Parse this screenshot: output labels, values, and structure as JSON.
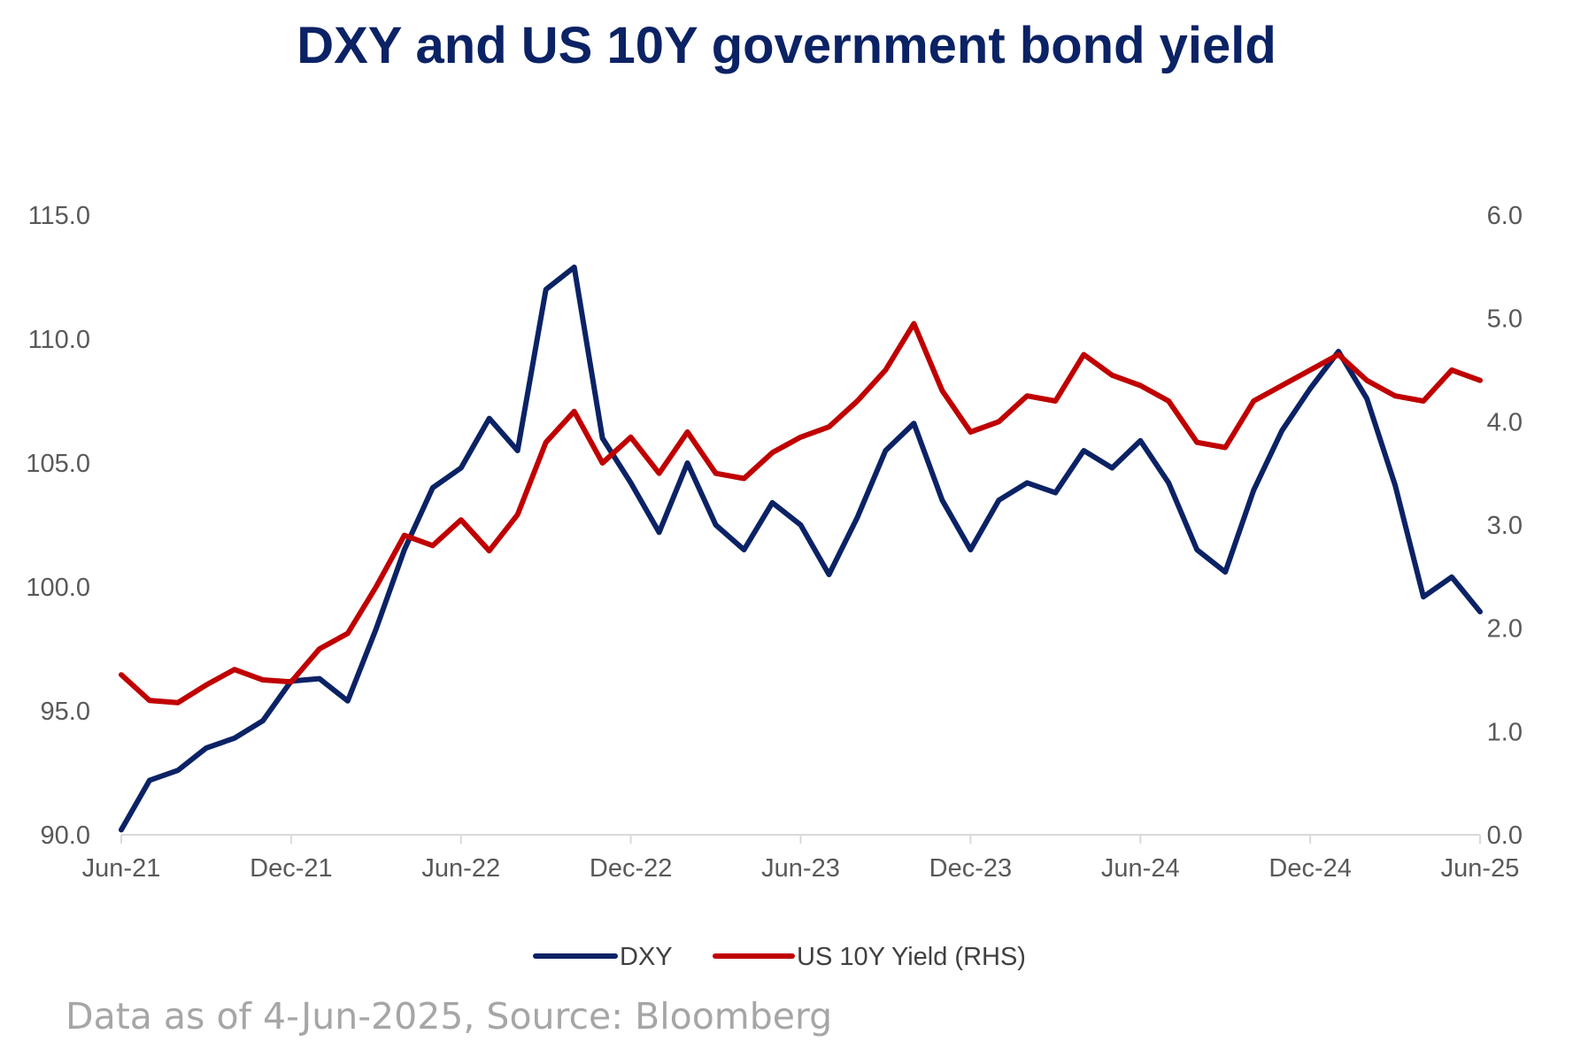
{
  "chart_data": {
    "type": "line",
    "title": "DXY and US 10Y government bond yield",
    "x_tick_labels": [
      "Jun-21",
      "Dec-21",
      "Jun-22",
      "Dec-22",
      "Jun-23",
      "Dec-23",
      "Jun-24",
      "Dec-24",
      "Jun-25"
    ],
    "x_range": [
      "2021-06",
      "2025-06"
    ],
    "y_left": {
      "range": [
        90,
        115
      ],
      "ticks": [
        "90.0",
        "95.0",
        "100.0",
        "105.0",
        "110.0",
        "115.0"
      ]
    },
    "y_right": {
      "range": [
        0,
        6
      ],
      "ticks": [
        "0.0",
        "1.0",
        "2.0",
        "3.0",
        "4.0",
        "5.0",
        "6.0"
      ]
    },
    "grid": false,
    "legend_position": "bottom",
    "series": [
      {
        "name": "DXY",
        "axis": "left",
        "color": "#0b2265",
        "x": [
          "2021-06",
          "2021-07",
          "2021-08",
          "2021-09",
          "2021-10",
          "2021-11",
          "2021-12",
          "2022-01",
          "2022-02",
          "2022-03",
          "2022-04",
          "2022-05",
          "2022-06",
          "2022-07",
          "2022-08",
          "2022-09",
          "2022-10",
          "2022-11",
          "2022-12",
          "2023-01",
          "2023-02",
          "2023-03",
          "2023-04",
          "2023-05",
          "2023-06",
          "2023-07",
          "2023-08",
          "2023-09",
          "2023-10",
          "2023-11",
          "2023-12",
          "2024-01",
          "2024-02",
          "2024-03",
          "2024-04",
          "2024-05",
          "2024-06",
          "2024-07",
          "2024-08",
          "2024-09",
          "2024-10",
          "2024-11",
          "2024-12",
          "2025-01",
          "2025-02",
          "2025-03",
          "2025-04",
          "2025-05",
          "2025-06"
        ],
        "values": [
          90.2,
          92.2,
          92.6,
          93.5,
          93.9,
          94.6,
          96.2,
          96.3,
          95.4,
          98.3,
          101.5,
          104.0,
          104.8,
          106.8,
          105.5,
          112.0,
          112.9,
          106.0,
          104.2,
          102.2,
          105.0,
          102.5,
          101.5,
          103.4,
          102.5,
          100.5,
          102.8,
          105.5,
          106.6,
          103.5,
          101.5,
          103.5,
          104.2,
          103.8,
          105.5,
          104.8,
          105.9,
          104.2,
          101.5,
          100.6,
          103.9,
          106.3,
          108.0,
          109.5,
          107.6,
          104.1,
          99.6,
          100.4,
          99.0
        ]
      },
      {
        "name": "US 10Y Yield (RHS)",
        "axis": "right",
        "color": "#c00000",
        "x": [
          "2021-06",
          "2021-07",
          "2021-08",
          "2021-09",
          "2021-10",
          "2021-11",
          "2021-12",
          "2022-01",
          "2022-02",
          "2022-03",
          "2022-04",
          "2022-05",
          "2022-06",
          "2022-07",
          "2022-08",
          "2022-09",
          "2022-10",
          "2022-11",
          "2022-12",
          "2023-01",
          "2023-02",
          "2023-03",
          "2023-04",
          "2023-05",
          "2023-06",
          "2023-07",
          "2023-08",
          "2023-09",
          "2023-10",
          "2023-11",
          "2023-12",
          "2024-01",
          "2024-02",
          "2024-03",
          "2024-04",
          "2024-05",
          "2024-06",
          "2024-07",
          "2024-08",
          "2024-09",
          "2024-10",
          "2024-11",
          "2024-12",
          "2025-01",
          "2025-02",
          "2025-03",
          "2025-04",
          "2025-05",
          "2025-06"
        ],
        "values": [
          1.55,
          1.3,
          1.28,
          1.45,
          1.6,
          1.5,
          1.48,
          1.8,
          1.95,
          2.4,
          2.9,
          2.8,
          3.05,
          2.75,
          3.1,
          3.8,
          4.1,
          3.6,
          3.85,
          3.5,
          3.9,
          3.5,
          3.45,
          3.7,
          3.85,
          3.95,
          4.2,
          4.5,
          4.95,
          4.3,
          3.9,
          4.0,
          4.25,
          4.2,
          4.65,
          4.45,
          4.35,
          4.2,
          3.8,
          3.75,
          4.2,
          4.35,
          4.5,
          4.65,
          4.4,
          4.25,
          4.2,
          4.5,
          4.4
        ]
      }
    ]
  },
  "source_note": "Data as of 4-Jun-2025, Source: Bloomberg"
}
